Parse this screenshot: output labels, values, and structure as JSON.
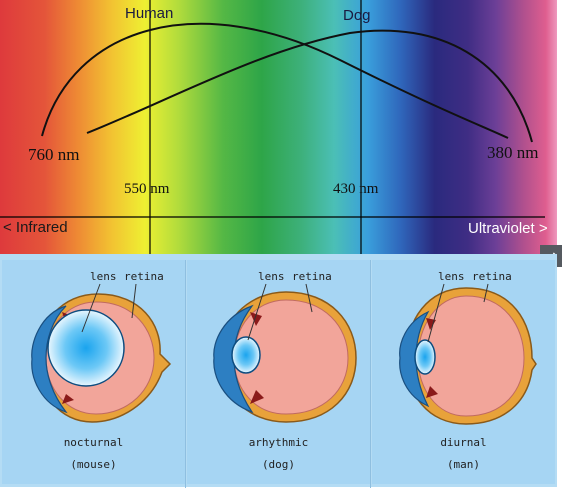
{
  "spectrum": {
    "curve_labels": {
      "human": "Human",
      "dog": "Dog"
    },
    "wavelength_labels": {
      "left_end": "760 nm",
      "right_end": "380 nm",
      "human_peak": "550 nm",
      "dog_peak": "430 nm"
    },
    "range_labels": {
      "left": "< Infrared",
      "right": "Ultraviolet >"
    }
  },
  "eyes": [
    {
      "lens_label": "lens",
      "retina_label": "retina",
      "name": "nocturnal",
      "animal": "(mouse)"
    },
    {
      "lens_label": "lens",
      "retina_label": "retina",
      "name": "arhythmic",
      "animal": "(dog)"
    },
    {
      "lens_label": "lens",
      "retina_label": "retina",
      "name": "diurnal",
      "animal": "(man)"
    }
  ],
  "nav": {
    "next_icon": "arrow-right-icon"
  }
}
